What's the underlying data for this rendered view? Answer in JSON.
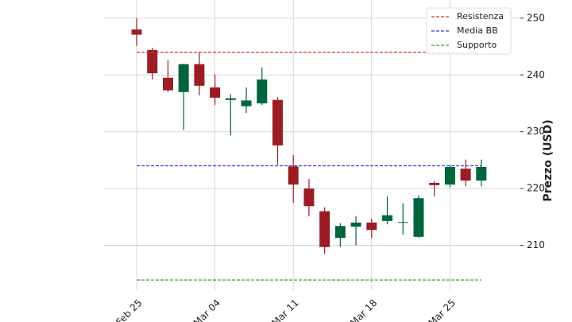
{
  "chart_data": {
    "type": "candlestick",
    "ylabel": "Prezzo (USD)",
    "categories": [
      "Feb 25",
      null,
      null,
      null,
      null,
      "Mar 04",
      null,
      null,
      null,
      null,
      "Mar 11",
      null,
      null,
      null,
      null,
      "Mar 18",
      null,
      null,
      null,
      null,
      "Mar 25",
      null,
      null
    ],
    "open": [
      248.0,
      244.4,
      239.5,
      237.0,
      241.9,
      237.8,
      235.6,
      234.5,
      235.0,
      235.6,
      223.9,
      220.0,
      216.0,
      211.3,
      213.3,
      214.0,
      214.3,
      214.0,
      211.5,
      221.0,
      220.7,
      223.5,
      221.4
    ],
    "high": [
      250.0,
      244.8,
      242.6,
      242.0,
      244.0,
      240.1,
      236.6,
      237.8,
      241.3,
      236.1,
      225.9,
      221.7,
      216.7,
      213.9,
      215.1,
      214.7,
      218.6,
      217.4,
      218.8,
      221.3,
      224.1,
      225.1,
      225.1
    ],
    "low": [
      245.1,
      239.2,
      237.0,
      230.3,
      236.4,
      234.7,
      229.4,
      233.3,
      234.7,
      224.2,
      217.5,
      215.1,
      208.5,
      209.7,
      210.0,
      211.3,
      213.7,
      211.9,
      211.3,
      218.6,
      220.2,
      220.4,
      220.4
    ],
    "close": [
      247.1,
      240.3,
      237.3,
      241.9,
      238.1,
      236.0,
      235.9,
      235.5,
      239.2,
      227.6,
      220.7,
      216.9,
      209.7,
      213.4,
      214.0,
      212.7,
      215.3,
      214.1,
      218.3,
      220.6,
      223.8,
      221.4,
      223.8
    ],
    "up_color": "#00643c",
    "down_color": "#9b1c24",
    "hlines": [
      {
        "name": "Resistenza",
        "value": 244.0,
        "color": "#e03030"
      },
      {
        "name": "Media BB",
        "value": 224.0,
        "color": "#3030e0"
      },
      {
        "name": "Supporto",
        "value": 203.9,
        "color": "#30a030"
      }
    ],
    "ylim": [
      202.1,
      253.2
    ],
    "yticks": [
      210,
      220,
      230,
      240,
      250
    ],
    "grid": true,
    "legend": "upper right"
  }
}
